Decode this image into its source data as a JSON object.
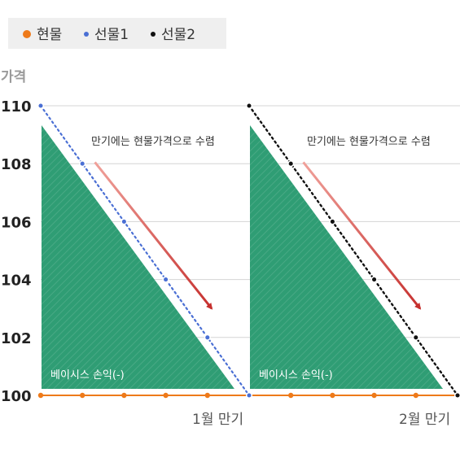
{
  "chart_data": {
    "type": "line",
    "ylabel": "가격",
    "ylim": [
      100,
      110
    ],
    "yticks": [
      100,
      102,
      104,
      106,
      108,
      110
    ],
    "grid": true,
    "legend_position": "top-left",
    "x_labels": [
      "1월 만기",
      "2월 만기"
    ],
    "colors": {
      "spot": "#ee7a1a",
      "future1": "#4a6fd4",
      "future2": "#111111",
      "area": "#2f9d74",
      "arrow_light": "#f0a19a",
      "arrow_dark": "#c6302e"
    },
    "series": [
      {
        "name": "현물",
        "x": [
          0,
          1,
          2,
          3,
          4,
          5,
          6,
          7,
          8,
          9,
          10
        ],
        "values": [
          100,
          100,
          100,
          100,
          100,
          100,
          100,
          100,
          100,
          100,
          100
        ]
      },
      {
        "name": "선물1",
        "x": [
          0,
          1,
          2,
          3,
          4,
          5
        ],
        "values": [
          110,
          108,
          106,
          104,
          102,
          100
        ]
      },
      {
        "name": "선물2",
        "x": [
          5,
          6,
          7,
          8,
          9,
          10
        ],
        "values": [
          110,
          108,
          106,
          104,
          102,
          100
        ]
      }
    ],
    "annotations": {
      "converge": "만기에는 현물가격으로 수렴",
      "basis_loss": "베이시스 손익(-)"
    }
  }
}
